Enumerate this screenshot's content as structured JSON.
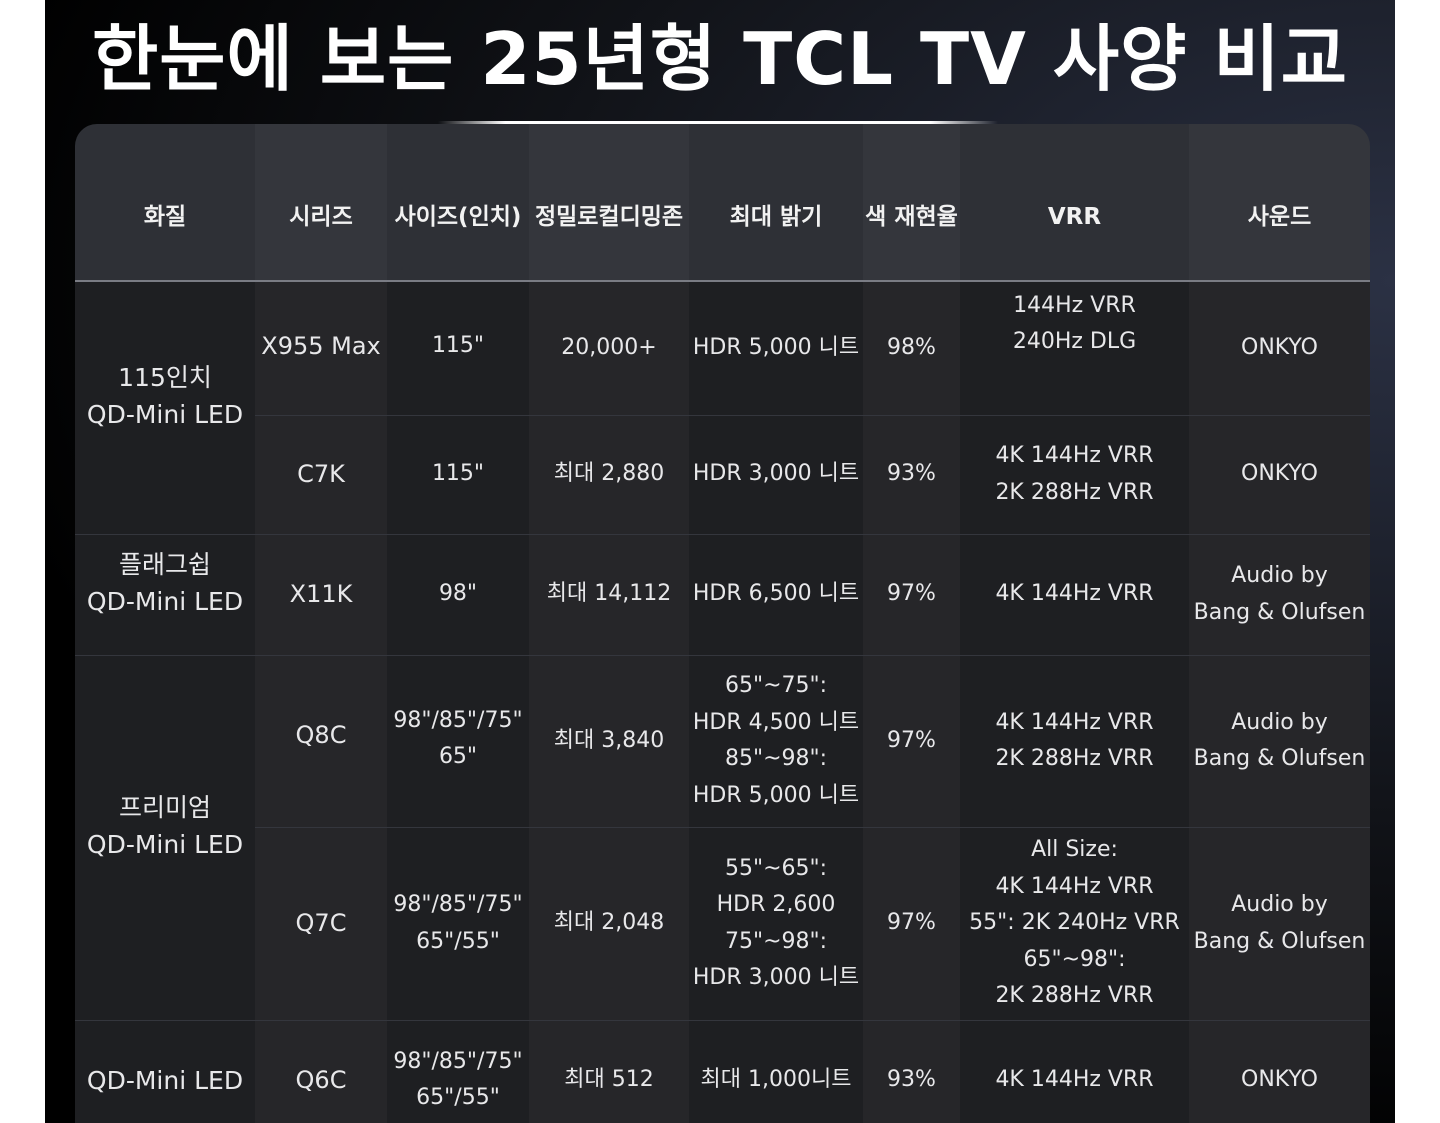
{
  "title": "한눈에 보는 25년형 TCL TV 사양 비교",
  "table": {
    "headers": [
      "화질",
      "시리즈",
      "사이즈(인치)",
      "정밀로컬디밍존",
      "최대 밝기",
      "색 재현율",
      "VRR",
      "사운드"
    ],
    "categories": [
      [
        "115인치",
        "QD-Mini LED"
      ],
      [
        "플래그쉽",
        "QD-Mini LED"
      ],
      [
        "프리미엄",
        "QD-Mini LED"
      ],
      [
        "QD-Mini LED"
      ]
    ],
    "rows": [
      {
        "series": "X955 Max",
        "size": [
          "115\""
        ],
        "dimming": "20,000+",
        "brightness": [
          "HDR 5,000 니트"
        ],
        "color": "98%",
        "vrr": [
          "144Hz VRR",
          "240Hz DLG"
        ],
        "sound": [
          "ONKYO"
        ]
      },
      {
        "series": "C7K",
        "size": [
          "115\""
        ],
        "dimming": "최대 2,880",
        "brightness": [
          "HDR 3,000 니트"
        ],
        "color": "93%",
        "vrr": [
          "4K 144Hz VRR",
          "2K 288Hz VRR"
        ],
        "sound": [
          "ONKYO"
        ]
      },
      {
        "series": "X11K",
        "size": [
          "98\""
        ],
        "dimming": "최대 14,112",
        "brightness": [
          "HDR 6,500 니트"
        ],
        "color": "97%",
        "vrr": [
          "4K 144Hz VRR"
        ],
        "sound": [
          "Audio by",
          "Bang & Olufsen"
        ]
      },
      {
        "series": "Q8C",
        "size": [
          "98\"/85\"/75\"",
          "65\""
        ],
        "dimming": "최대 3,840",
        "brightness": [
          "65\"~75\":",
          "HDR 4,500 니트",
          "85\"~98\":",
          "HDR 5,000 니트"
        ],
        "color": "97%",
        "vrr": [
          "4K 144Hz VRR",
          "2K 288Hz VRR"
        ],
        "sound": [
          "Audio by",
          "Bang & Olufsen"
        ]
      },
      {
        "series": "Q7C",
        "size": [
          "98\"/85\"/75\"",
          "65\"/55\""
        ],
        "dimming": "최대 2,048",
        "brightness": [
          "55\"~65\":",
          "HDR 2,600",
          "75\"~98\":",
          "HDR 3,000 니트"
        ],
        "color": "97%",
        "vrr": [
          "All Size:",
          "4K 144Hz VRR",
          "55\": 2K 240Hz VRR",
          "65\"~98\":",
          "2K 288Hz VRR"
        ],
        "sound": [
          "Audio by",
          "Bang & Olufsen"
        ]
      },
      {
        "series": "Q6C",
        "size": [
          "98\"/85\"/75\"",
          "65\"/55\""
        ],
        "dimming": "최대 512",
        "brightness": [
          "최대 1,000니트"
        ],
        "color": "93%",
        "vrr": [
          "4K 144Hz VRR"
        ],
        "sound": [
          "ONKYO"
        ]
      }
    ]
  }
}
